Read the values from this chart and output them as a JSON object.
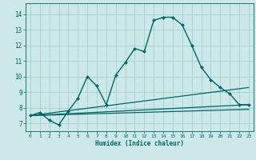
{
  "xlabel": "Humidex (Indice chaleur)",
  "background_color": "#cce8e8",
  "grid_color": "#99cccc",
  "line_color": "#006666",
  "x_ticks": [
    0,
    1,
    2,
    3,
    4,
    5,
    6,
    7,
    8,
    9,
    10,
    11,
    12,
    13,
    14,
    15,
    16,
    17,
    18,
    19,
    20,
    21,
    22,
    23
  ],
  "x_tick_labels": [
    "0",
    "1",
    "2",
    "3",
    "4",
    "5",
    "6",
    "7",
    "8",
    "9",
    "10",
    "11",
    "12",
    "13",
    "14",
    "15",
    "16",
    "17",
    "18",
    "19",
    "20",
    "21",
    "22",
    "23"
  ],
  "y_ticks": [
    7,
    8,
    9,
    10,
    11,
    12,
    13,
    14
  ],
  "ylim": [
    6.5,
    14.7
  ],
  "xlim": [
    -0.5,
    23.5
  ],
  "series": [
    {
      "x": [
        0,
        1,
        2,
        3,
        4,
        5,
        6,
        7,
        8,
        9,
        10,
        11,
        12,
        13,
        14,
        15,
        16,
        17,
        18,
        19,
        20,
        21,
        22,
        23
      ],
      "y": [
        7.5,
        7.7,
        7.2,
        6.9,
        7.8,
        8.6,
        10.0,
        9.4,
        8.2,
        10.1,
        10.9,
        11.8,
        11.6,
        13.6,
        13.8,
        13.8,
        13.3,
        12.0,
        10.6,
        9.8,
        9.3,
        8.9,
        8.2,
        8.2
      ],
      "marker": "D",
      "markersize": 2.0,
      "linewidth": 1.0
    },
    {
      "x": [
        0,
        23
      ],
      "y": [
        7.5,
        9.3
      ],
      "marker": null,
      "markersize": 0,
      "linewidth": 0.9
    },
    {
      "x": [
        0,
        23
      ],
      "y": [
        7.5,
        8.2
      ],
      "marker": null,
      "markersize": 0,
      "linewidth": 0.9
    },
    {
      "x": [
        0,
        23
      ],
      "y": [
        7.5,
        7.9
      ],
      "marker": null,
      "markersize": 0,
      "linewidth": 0.9
    }
  ]
}
